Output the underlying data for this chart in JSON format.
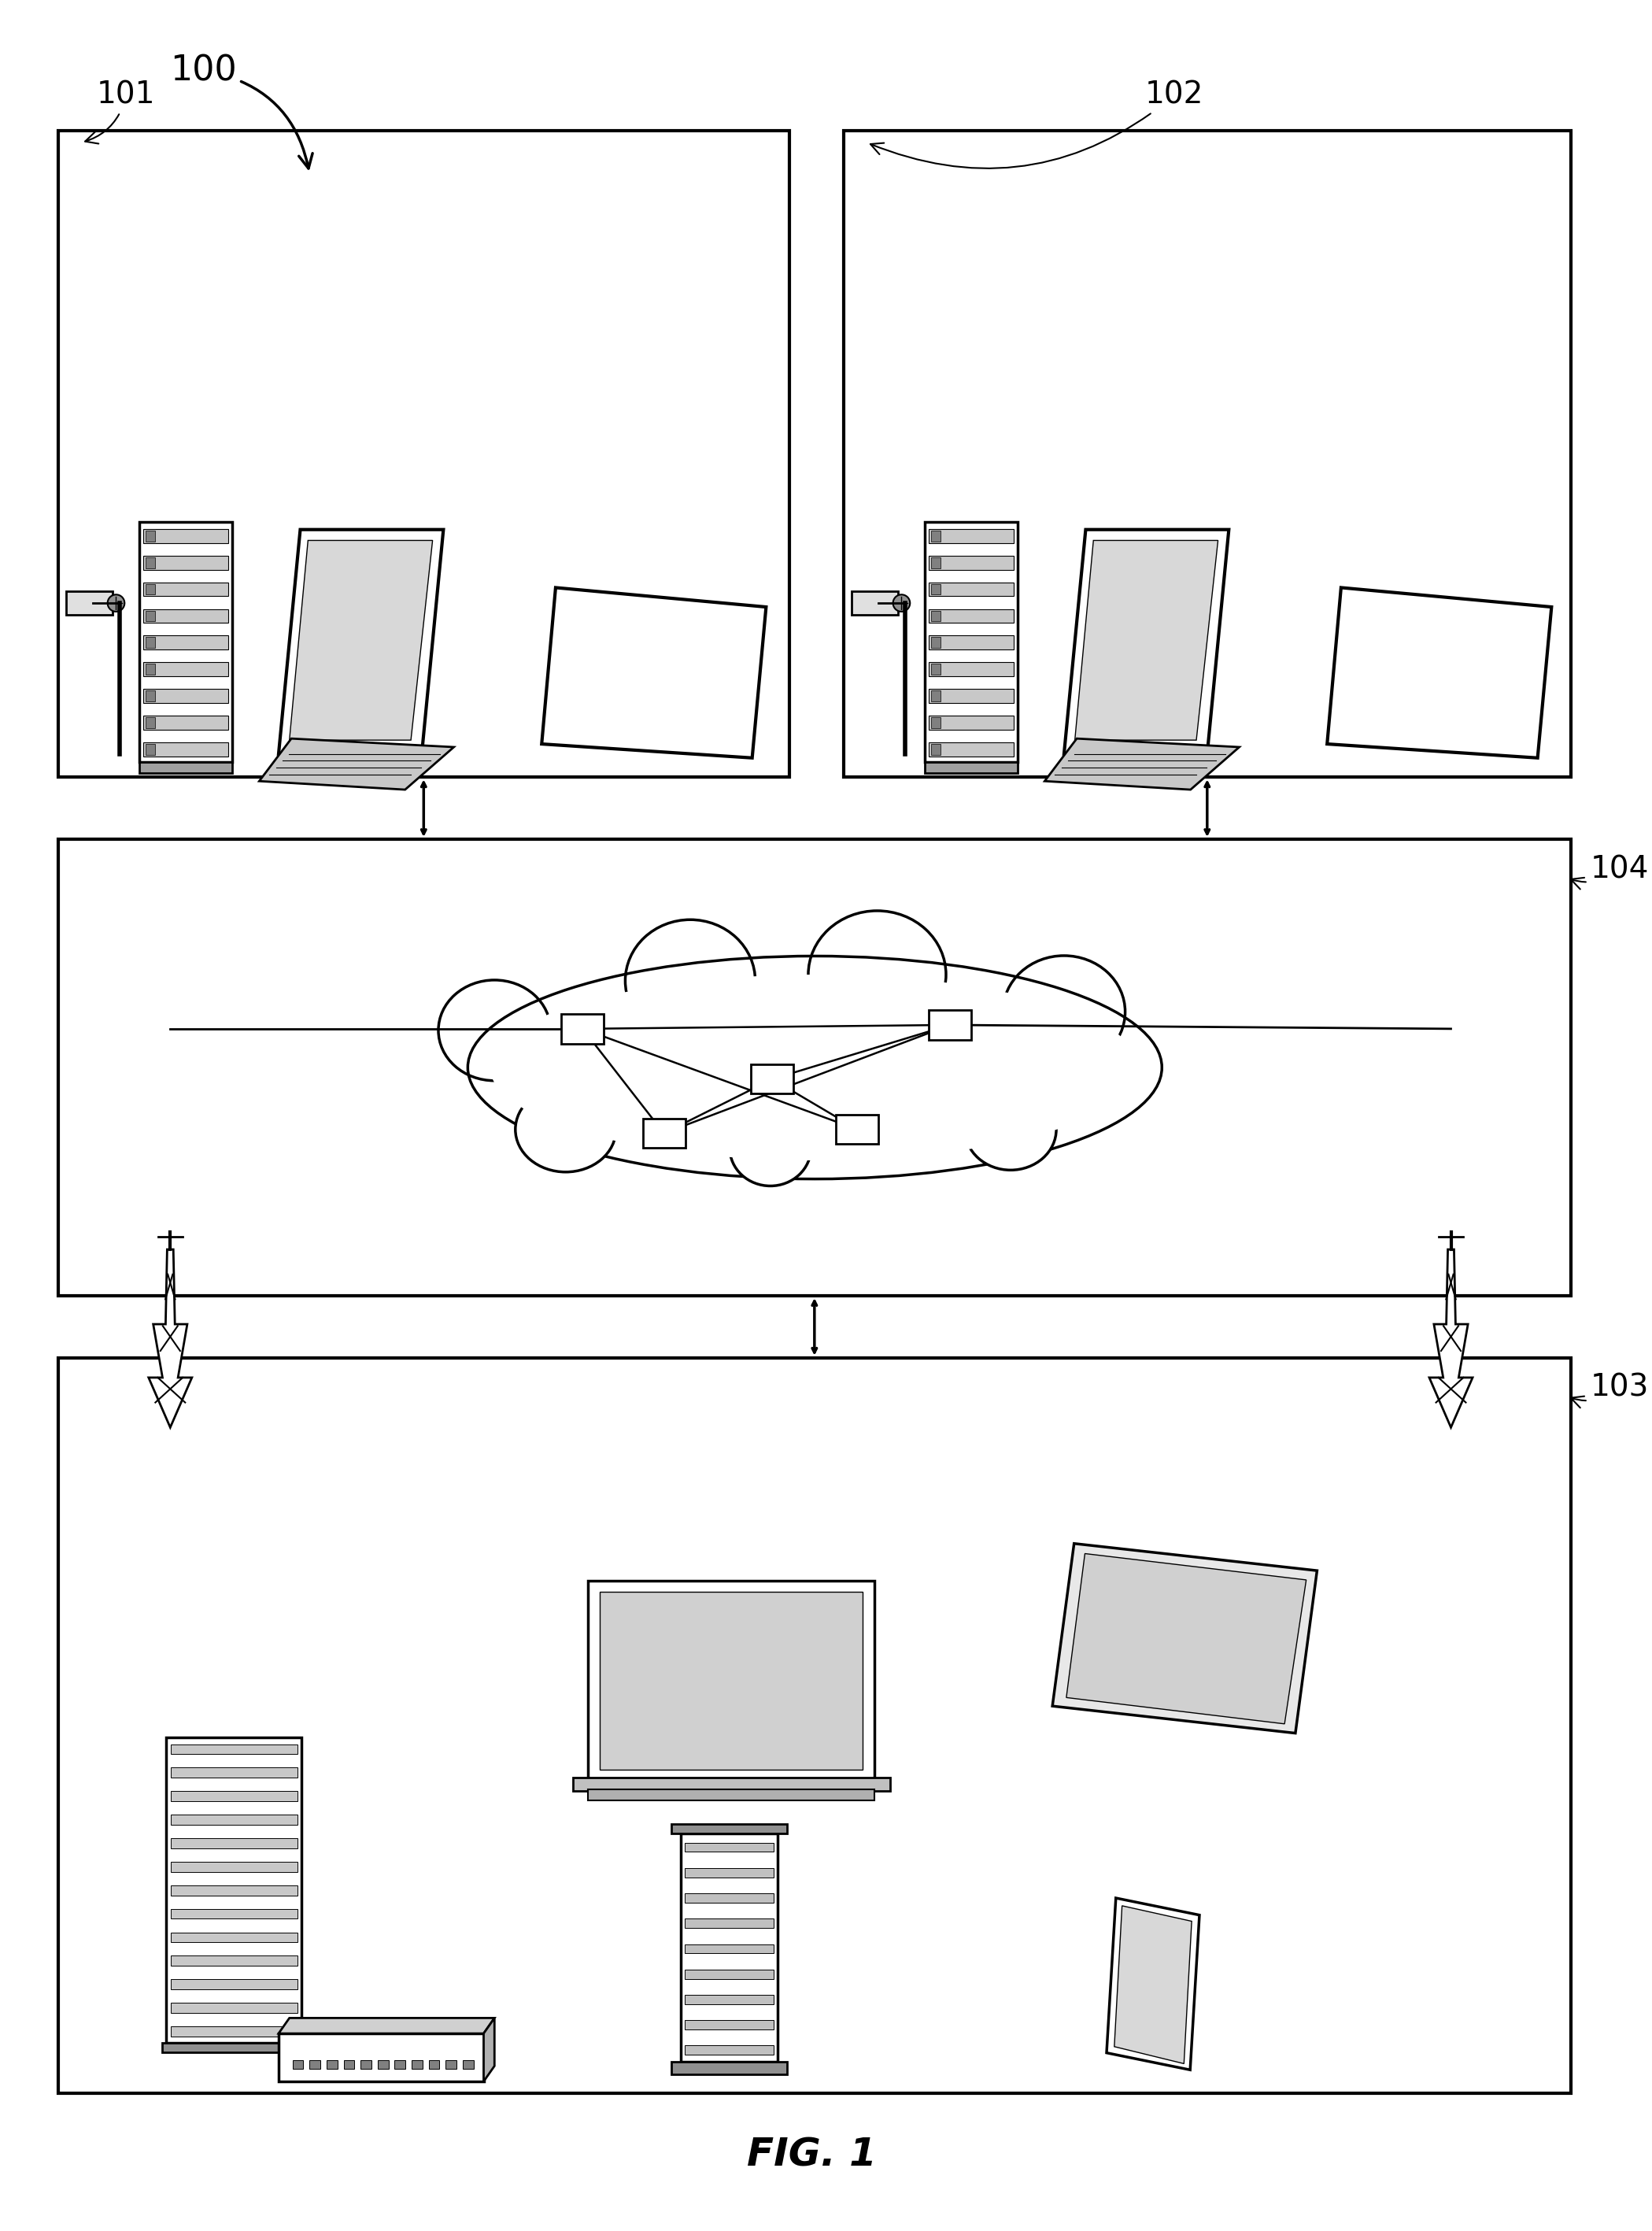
{
  "title": "FIG. 1",
  "label_100": "100",
  "label_101": "101",
  "label_102": "102",
  "label_103": "103",
  "label_104": "104",
  "bg_color": "#ffffff",
  "box_color": "#000000",
  "line_width": 2.5,
  "font_size_label": 28,
  "font_size_fig": 36
}
